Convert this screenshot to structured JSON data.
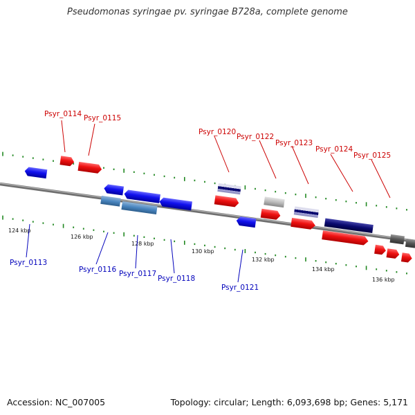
{
  "title": "Pseudomonas syringae pv. syringae B728a, complete genome",
  "footer": {
    "accession": "Accession: NC_007005",
    "summary": "Topology: circular; Length: 6,093,698 bp; Genes: 5,171"
  },
  "colors": {
    "forward": "#ee1111",
    "reverse": "#1111ee",
    "forward_label": "#cc0000",
    "reverse_label": "#0000bb",
    "backbone": "#777777",
    "tick": "#228822"
  },
  "tick_labels": [
    "124 kbp",
    "126 kbp",
    "128 kbp",
    "130 kbp",
    "132 kbp",
    "134 kbp",
    "136 kbp"
  ],
  "forward_labels": [
    "Psyr_0114",
    "Psyr_0115",
    "Psyr_0120",
    "Psyr_0122",
    "Psyr_0123",
    "Psyr_0124",
    "Psyr_0125"
  ],
  "reverse_labels": [
    "Psyr_0113",
    "Psyr_0116",
    "Psyr_0117",
    "Psyr_0118",
    "Psyr_0121"
  ]
}
